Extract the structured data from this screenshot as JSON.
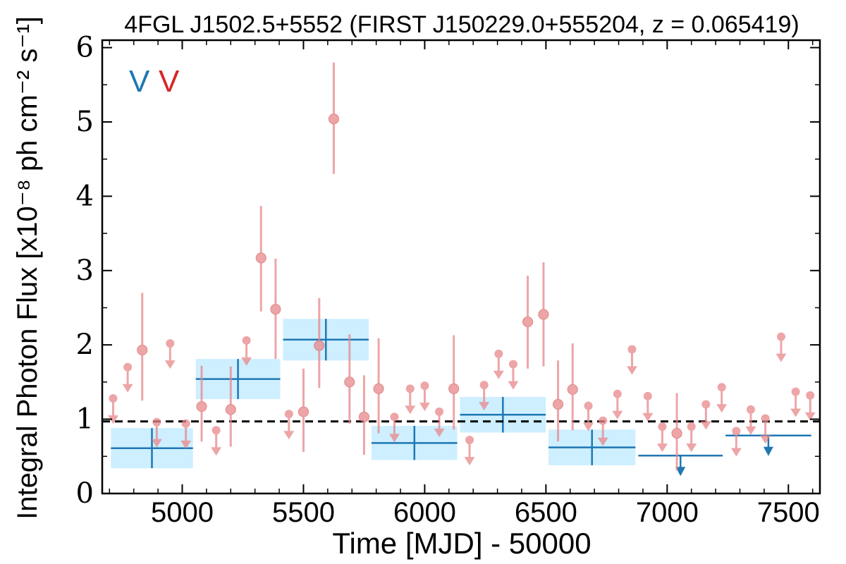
{
  "chart_data": {
    "type": "scatter",
    "title": "4FGL J1502.5+5552 (FIRST J150229.0+555204, z = 0.065419)",
    "xlabel": "Time [MJD] - 50000",
    "ylabel": "Integral Photon Flux [x10⁻⁸ ph cm⁻² s⁻¹]",
    "xlim": [
      4670,
      7630
    ],
    "ylim": [
      0,
      6.1
    ],
    "x_ticks": [
      5000,
      5500,
      6000,
      6500,
      7000,
      7500
    ],
    "y_ticks": [
      0,
      1,
      2,
      3,
      4,
      5,
      6
    ],
    "grid": false,
    "mean_flux": 0.97,
    "legend": {
      "position": "top-left",
      "entries": [
        {
          "label": "V",
          "color": "#1f77b4"
        },
        {
          "label": "V",
          "color": "#d62728"
        }
      ]
    },
    "colors": {
      "short_bin": "#e8888a",
      "long_bin": "#1f77b4",
      "long_bin_fill": "#cdefff",
      "mean_line": "#000000"
    },
    "long_bins": [
      {
        "start": 4700,
        "end": 5050,
        "flux": 0.61,
        "err": 0.27,
        "upper_limit": false
      },
      {
        "start": 5050,
        "end": 5410,
        "flux": 1.54,
        "err": 0.27,
        "upper_limit": false
      },
      {
        "start": 5410,
        "end": 5775,
        "flux": 2.07,
        "err": 0.28,
        "upper_limit": false
      },
      {
        "start": 5775,
        "end": 6140,
        "flux": 0.68,
        "err": 0.23,
        "upper_limit": false
      },
      {
        "start": 6140,
        "end": 6505,
        "flux": 1.06,
        "err": 0.24,
        "upper_limit": false
      },
      {
        "start": 6505,
        "end": 6875,
        "flux": 0.62,
        "err": 0.24,
        "upper_limit": false
      },
      {
        "start": 6875,
        "end": 7235,
        "flux": 0.51,
        "err": 0,
        "upper_limit": true
      },
      {
        "start": 7235,
        "end": 7600,
        "flux": 0.78,
        "err": 0,
        "upper_limit": true
      }
    ],
    "short_points": [
      {
        "x": 4715,
        "y": 1.28,
        "upper_limit": true
      },
      {
        "x": 4775,
        "y": 1.7,
        "upper_limit": true
      },
      {
        "x": 4835,
        "y": 1.93,
        "err_low": 0.68,
        "err_high": 0.77,
        "upper_limit": false
      },
      {
        "x": 4895,
        "y": 0.96,
        "upper_limit": true
      },
      {
        "x": 4950,
        "y": 2.02,
        "upper_limit": true
      },
      {
        "x": 5015,
        "y": 0.94,
        "upper_limit": true
      },
      {
        "x": 5080,
        "y": 1.17,
        "err_low": 0.47,
        "err_high": 0.55,
        "upper_limit": false
      },
      {
        "x": 5140,
        "y": 0.85,
        "upper_limit": true
      },
      {
        "x": 5200,
        "y": 1.13,
        "err_low": 0.5,
        "err_high": 0.58,
        "upper_limit": false
      },
      {
        "x": 5265,
        "y": 2.06,
        "upper_limit": true
      },
      {
        "x": 5325,
        "y": 3.17,
        "err_low": 0.72,
        "err_high": 0.7,
        "upper_limit": false
      },
      {
        "x": 5385,
        "y": 2.48,
        "err_low": 0.67,
        "err_high": 0.68,
        "upper_limit": false
      },
      {
        "x": 5440,
        "y": 1.07,
        "upper_limit": true
      },
      {
        "x": 5500,
        "y": 1.1,
        "err_low": 0.54,
        "err_high": 0.58,
        "upper_limit": false
      },
      {
        "x": 5565,
        "y": 1.99,
        "err_low": 0.57,
        "err_high": 0.64,
        "upper_limit": false
      },
      {
        "x": 5625,
        "y": 5.04,
        "err_low": 0.74,
        "err_high": 0.76,
        "upper_limit": false
      },
      {
        "x": 5690,
        "y": 1.5,
        "err_low": 0.56,
        "err_high": 0.64,
        "upper_limit": false
      },
      {
        "x": 5750,
        "y": 1.03,
        "err_low": 0.51,
        "err_high": 0.56,
        "upper_limit": false
      },
      {
        "x": 5810,
        "y": 1.41,
        "err_low": 0.6,
        "err_high": 0.68,
        "upper_limit": false
      },
      {
        "x": 5875,
        "y": 1.03,
        "upper_limit": true
      },
      {
        "x": 5940,
        "y": 1.41,
        "upper_limit": true
      },
      {
        "x": 6000,
        "y": 1.45,
        "upper_limit": true
      },
      {
        "x": 6060,
        "y": 1.1,
        "upper_limit": true
      },
      {
        "x": 6120,
        "y": 1.41,
        "err_low": 0.55,
        "err_high": 0.72,
        "upper_limit": false
      },
      {
        "x": 6185,
        "y": 0.72,
        "upper_limit": true
      },
      {
        "x": 6245,
        "y": 1.46,
        "upper_limit": true
      },
      {
        "x": 6305,
        "y": 1.88,
        "upper_limit": true
      },
      {
        "x": 6365,
        "y": 1.74,
        "upper_limit": true
      },
      {
        "x": 6425,
        "y": 2.31,
        "err_low": 0.63,
        "err_high": 0.62,
        "upper_limit": false
      },
      {
        "x": 6490,
        "y": 2.41,
        "err_low": 0.7,
        "err_high": 0.7,
        "upper_limit": false
      },
      {
        "x": 6550,
        "y": 1.2,
        "err_low": 0.5,
        "err_high": 0.59,
        "upper_limit": false
      },
      {
        "x": 6610,
        "y": 1.4,
        "err_low": 0.55,
        "err_high": 0.62,
        "upper_limit": false
      },
      {
        "x": 6675,
        "y": 1.18,
        "upper_limit": true
      },
      {
        "x": 6735,
        "y": 0.98,
        "upper_limit": true
      },
      {
        "x": 6795,
        "y": 1.34,
        "upper_limit": true
      },
      {
        "x": 6855,
        "y": 1.94,
        "upper_limit": true
      },
      {
        "x": 6920,
        "y": 1.31,
        "upper_limit": true
      },
      {
        "x": 6980,
        "y": 0.9,
        "upper_limit": true
      },
      {
        "x": 7040,
        "y": 0.81,
        "err_low": 0.5,
        "err_high": 0.54,
        "upper_limit": false
      },
      {
        "x": 7100,
        "y": 0.9,
        "upper_limit": true
      },
      {
        "x": 7160,
        "y": 1.2,
        "upper_limit": true
      },
      {
        "x": 7225,
        "y": 1.43,
        "upper_limit": true
      },
      {
        "x": 7285,
        "y": 0.84,
        "upper_limit": true
      },
      {
        "x": 7345,
        "y": 1.13,
        "upper_limit": true
      },
      {
        "x": 7405,
        "y": 1.01,
        "upper_limit": true
      },
      {
        "x": 7470,
        "y": 2.11,
        "upper_limit": true
      },
      {
        "x": 7530,
        "y": 1.37,
        "upper_limit": true
      },
      {
        "x": 7590,
        "y": 1.32,
        "upper_limit": true
      }
    ]
  }
}
